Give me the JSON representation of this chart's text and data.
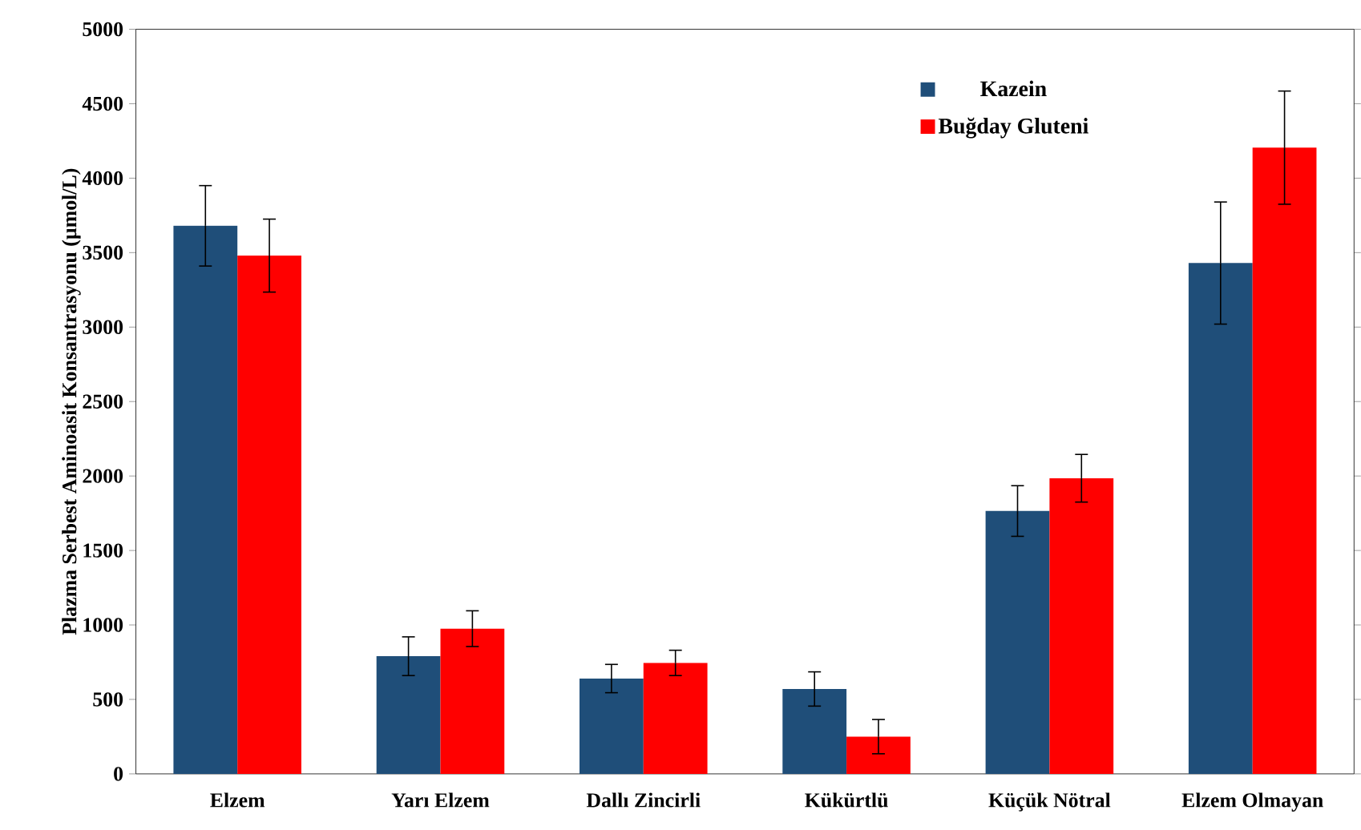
{
  "chart_data": {
    "type": "bar",
    "ylabel": "Plazma Serbest Aminoasit Konsantrasyonu (µmol/L)",
    "categories": [
      "Elzem",
      "Yarı Elzem",
      "Dallı Zincirli",
      "Kükürtlü",
      "Küçük Nötral",
      "Elzem Olmayan"
    ],
    "series": [
      {
        "name": "Kazein",
        "color": "#1f4e79",
        "values": [
          3680,
          790,
          640,
          570,
          1765,
          3430
        ],
        "errors": [
          270,
          130,
          95,
          115,
          170,
          410
        ]
      },
      {
        "name": "Buğday Gluteni",
        "color": "#ff0000",
        "values": [
          3480,
          975,
          745,
          250,
          1985,
          4205
        ],
        "errors": [
          245,
          120,
          85,
          115,
          160,
          380
        ]
      }
    ],
    "ylim": [
      0,
      5000
    ],
    "yticks": [
      0,
      500,
      1000,
      1500,
      2000,
      2500,
      3000,
      3500,
      4000,
      4500,
      5000
    ],
    "grid": false,
    "legend": "top right"
  }
}
